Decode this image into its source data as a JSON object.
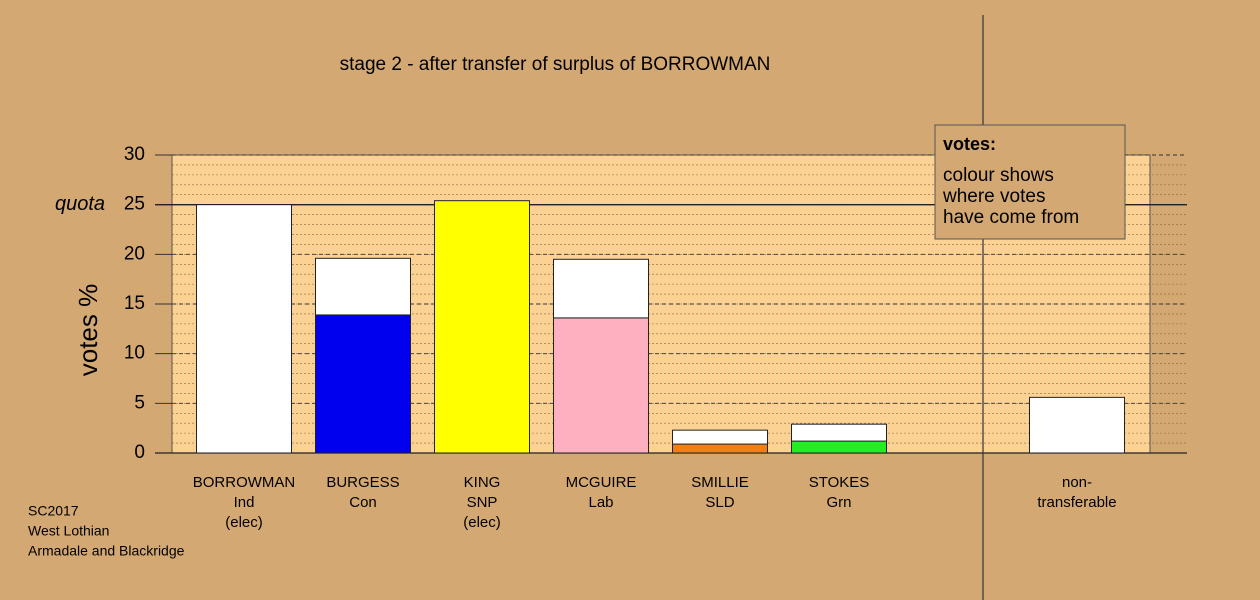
{
  "chart_data": {
    "type": "bar",
    "stacked": true,
    "title": "stage 2 - after transfer of surplus of BORROWMAN",
    "y_label": "votes %",
    "categories": [
      [
        "BORROWMAN",
        "Ind",
        "(elec)"
      ],
      [
        "BURGESS",
        "Con"
      ],
      [
        "KING",
        "SNP",
        "(elec)"
      ],
      [
        "MCGUIRE",
        "Lab"
      ],
      [
        "SMILLIE",
        "SLD"
      ],
      [
        "STOKES",
        "Grn"
      ],
      null,
      [
        "non-",
        "transferable"
      ]
    ],
    "series": [
      {
        "colors": [
          "#ffffff",
          "#0000ee",
          "#ffff00",
          "#ffb0c0",
          "#f08010",
          "#22ee22",
          null,
          "#ffffff"
        ],
        "values": [
          0,
          13.9,
          25.4,
          13.6,
          0.9,
          1.2,
          null,
          0
        ]
      },
      {
        "color": "#ffffff",
        "values": [
          25,
          5.7,
          0,
          5.9,
          1.4,
          1.7,
          null,
          5.6
        ]
      }
    ],
    "ylim": [
      0,
      30
    ],
    "yticks": [
      0,
      5,
      10,
      15,
      20,
      25,
      30
    ],
    "grid": true,
    "quota": {
      "value": 25,
      "label": "quota"
    },
    "legend_box": [
      "votes:",
      "colour shows",
      "where votes",
      "have come from"
    ],
    "footer": [
      "SC2017",
      "West Lothian",
      "Armadale and Blackridge"
    ]
  }
}
